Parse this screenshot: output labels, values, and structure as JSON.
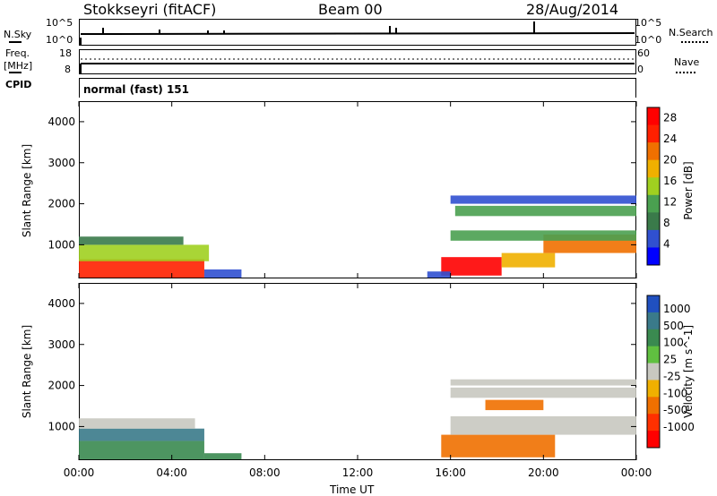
{
  "header": {
    "station": "Stokkseyri (fitACF)",
    "beam": "Beam 00",
    "date": "28/Aug/2014"
  },
  "noise_panel": {
    "left_label": "N.Sky",
    "left_top_tick": "10^5",
    "left_bottom_tick": "10^0",
    "right_top_tick": "10^5",
    "right_bottom_tick": "10^0",
    "right_label": "N.Search"
  },
  "freq_panel": {
    "left_label_1": "Freq.",
    "left_label_2": "[MHz]",
    "left_top_tick": "18",
    "left_bottom_tick": "8",
    "right_top_tick": "60",
    "right_bottom_tick": "0",
    "right_label": "Nave"
  },
  "cpid_panel": {
    "label": "CPID",
    "value": "normal (fast) 151"
  },
  "x_axis": {
    "label": "Time UT",
    "ticks": [
      "00:00",
      "04:00",
      "08:00",
      "12:00",
      "16:00",
      "20:00",
      "00:00"
    ]
  },
  "colors": {
    "power_scale": [
      "#0000ff",
      "#3050d0",
      "#3a7a4a",
      "#4aa050",
      "#a0d020",
      "#f0b000",
      "#f07000",
      "#ff2000",
      "#ff0000"
    ],
    "velocity_scale": [
      "#2050c0",
      "#3a7a8a",
      "#3a8a50",
      "#60c040",
      "#c8c8c0",
      "#f0b000",
      "#f07000",
      "#ff3000",
      "#ff0000"
    ]
  },
  "chart_data": [
    {
      "type": "heatmap",
      "ylabel": "Slant Range [km]",
      "xlabel": "",
      "ylim": [
        180,
        4500
      ],
      "xlim": [
        0,
        24
      ],
      "yticks": [
        "1000",
        "2000",
        "3000",
        "4000"
      ],
      "colorbar": {
        "label": "Power [dB]",
        "ticks": [
          "4",
          "8",
          "12",
          "16",
          "20",
          "24",
          "28"
        ],
        "range": [
          0,
          30
        ]
      },
      "regions": [
        {
          "t0": 0.0,
          "t1": 5.4,
          "r0": 200,
          "r1": 650,
          "level": 26
        },
        {
          "t0": 0.0,
          "t1": 5.6,
          "r0": 600,
          "r1": 1000,
          "level": 14
        },
        {
          "t0": 0.0,
          "t1": 4.5,
          "r0": 1000,
          "r1": 1200,
          "level": 8
        },
        {
          "t0": 5.4,
          "t1": 7.0,
          "r0": 200,
          "r1": 400,
          "level": 6
        },
        {
          "t0": 15.6,
          "t1": 18.2,
          "r0": 250,
          "r1": 700,
          "level": 28
        },
        {
          "t0": 18.2,
          "t1": 20.5,
          "r0": 450,
          "r1": 800,
          "level": 18
        },
        {
          "t0": 20.0,
          "t1": 24.0,
          "r0": 800,
          "r1": 1250,
          "level": 22
        },
        {
          "t0": 16.0,
          "t1": 24.0,
          "r0": 1100,
          "r1": 1350,
          "level": 12
        },
        {
          "t0": 16.2,
          "t1": 24.0,
          "r0": 1700,
          "r1": 1950,
          "level": 10
        },
        {
          "t0": 16.0,
          "t1": 24.0,
          "r0": 2000,
          "r1": 2200,
          "level": 6
        },
        {
          "t0": 15.0,
          "t1": 16.0,
          "r0": 200,
          "r1": 350,
          "level": 6
        }
      ]
    },
    {
      "type": "heatmap",
      "ylabel": "Slant Range [km]",
      "xlabel": "Time UT",
      "ylim": [
        180,
        4500
      ],
      "xlim": [
        0,
        24
      ],
      "yticks": [
        "1000",
        "2000",
        "3000",
        "4000"
      ],
      "colorbar": {
        "label": "Velocity [m s^-1]",
        "ticks": [
          "1000",
          "500",
          "100",
          "25",
          "-25",
          "-100",
          "-500",
          "-1000"
        ],
        "range": [
          -1000,
          1000
        ]
      },
      "regions": [
        {
          "t0": 0.0,
          "t1": 5.4,
          "r0": 200,
          "r1": 650,
          "level": 300
        },
        {
          "t0": 0.0,
          "t1": 5.4,
          "r0": 650,
          "r1": 950,
          "level": 700
        },
        {
          "t0": 0.0,
          "t1": 5.0,
          "r0": 950,
          "r1": 1200,
          "level": 0
        },
        {
          "t0": 5.4,
          "t1": 7.0,
          "r0": 200,
          "r1": 350,
          "level": 200
        },
        {
          "t0": 15.6,
          "t1": 20.5,
          "r0": 250,
          "r1": 800,
          "level": -200
        },
        {
          "t0": 16.0,
          "t1": 24.0,
          "r0": 800,
          "r1": 1250,
          "level": 0
        },
        {
          "t0": 16.0,
          "t1": 24.0,
          "r0": 1700,
          "r1": 1950,
          "level": 0
        },
        {
          "t0": 17.5,
          "t1": 20.0,
          "r0": 1400,
          "r1": 1650,
          "level": -300
        },
        {
          "t0": 16.0,
          "t1": 24.0,
          "r0": 2000,
          "r1": 2150,
          "level": 0
        }
      ]
    }
  ]
}
